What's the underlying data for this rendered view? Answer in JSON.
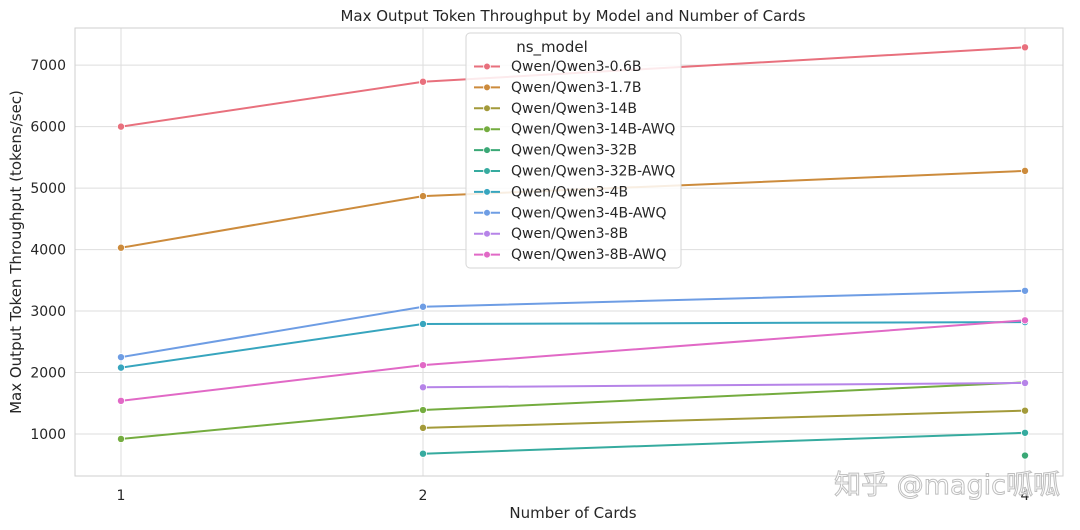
{
  "chart_data": {
    "type": "line",
    "title": "Max Output Token Throughput by Model and Number of Cards",
    "xlabel": "Number of Cards",
    "ylabel": "Max Output Token Throughput (tokens/sec)",
    "x_ticks": [
      1,
      2,
      4
    ],
    "y_ticks": [
      1000,
      2000,
      3000,
      4000,
      5000,
      6000,
      7000
    ],
    "xlim": [
      0.85,
      4.1
    ],
    "ylim": [
      450,
      7650
    ],
    "x_scale": "categorical-like positions",
    "grid": true,
    "legend": {
      "title": "ns_model",
      "placement": "top-center"
    },
    "series": [
      {
        "name": "Qwen/Qwen3-0.6B",
        "color": "#e8707d",
        "points": [
          [
            1,
            6000
          ],
          [
            2,
            6730
          ],
          [
            4,
            7290
          ]
        ]
      },
      {
        "name": "Qwen/Qwen3-1.7B",
        "color": "#cc8b3c",
        "points": [
          [
            1,
            4030
          ],
          [
            2,
            4870
          ],
          [
            4,
            5280
          ]
        ]
      },
      {
        "name": "Qwen/Qwen3-14B",
        "color": "#a39a3a",
        "points": [
          [
            2,
            1100
          ],
          [
            4,
            1380
          ]
        ]
      },
      {
        "name": "Qwen/Qwen3-14B-AWQ",
        "color": "#74ac3f",
        "points": [
          [
            1,
            920
          ],
          [
            2,
            1390
          ],
          [
            4,
            1840
          ]
        ]
      },
      {
        "name": "Qwen/Qwen3-32B",
        "color": "#3aa876",
        "points": [
          [
            4,
            650
          ]
        ]
      },
      {
        "name": "Qwen/Qwen3-32B-AWQ",
        "color": "#36ab9f",
        "points": [
          [
            2,
            680
          ],
          [
            4,
            1020
          ]
        ]
      },
      {
        "name": "Qwen/Qwen3-4B",
        "color": "#37a5be",
        "points": [
          [
            1,
            2080
          ],
          [
            2,
            2790
          ],
          [
            4,
            2820
          ]
        ]
      },
      {
        "name": "Qwen/Qwen3-4B-AWQ",
        "color": "#6e9de4",
        "points": [
          [
            1,
            2250
          ],
          [
            2,
            3070
          ],
          [
            4,
            3330
          ]
        ]
      },
      {
        "name": "Qwen/Qwen3-8B",
        "color": "#b684e8",
        "points": [
          [
            2,
            1760
          ],
          [
            4,
            1830
          ]
        ]
      },
      {
        "name": "Qwen/Qwen3-8B-AWQ",
        "color": "#e169c6",
        "points": [
          [
            1,
            1540
          ],
          [
            2,
            2120
          ],
          [
            4,
            2850
          ]
        ]
      }
    ]
  },
  "watermark": {
    "text": "知乎 @magic呱呱"
  }
}
